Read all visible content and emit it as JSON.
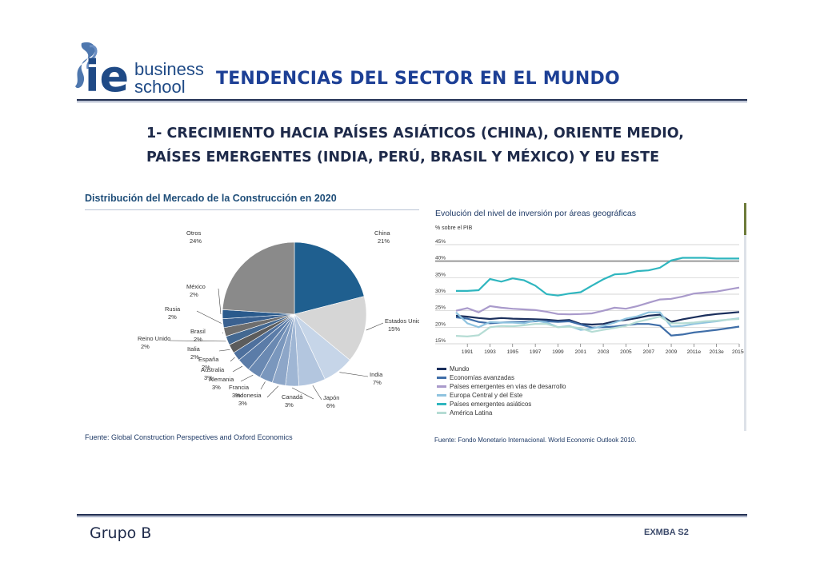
{
  "logo": {
    "mark": "ie",
    "line1": "business",
    "line2": "school"
  },
  "slide_title": "TENDENCIAS DEL SECTOR EN EL MUNDO",
  "heading": {
    "line1": "1- CRECIMIENTO HACIA PAÍSES ASIÁTICOS (CHINA), ORIENTE MEDIO,",
    "line2": "PAÍSES EMERGENTES (INDIA, PERÚ, BRASIL Y MÉXICO)  Y   EU  ESTE"
  },
  "footer": {
    "left": "Grupo B",
    "right": "EXMBA S2"
  },
  "chart_data": [
    {
      "type": "pie",
      "title": "Distribución del Mercado de la Construcción en 2020",
      "source": "Fuente: Global Construction Perspectives and Oxford Economics",
      "slices": [
        {
          "name": "China",
          "value": 21,
          "label": "21%",
          "color": "#1f5f8f"
        },
        {
          "name": "Estados Unidos",
          "value": 15,
          "label": "15%",
          "color": "#d6d6d6"
        },
        {
          "name": "India",
          "value": 7,
          "label": "7%",
          "color": "#c6d5e8"
        },
        {
          "name": "Japón",
          "value": 6,
          "label": "6%",
          "color": "#b3c6df"
        },
        {
          "name": "Canadá",
          "value": 3,
          "label": "3%",
          "color": "#9fb6d4"
        },
        {
          "name": "Indonesia",
          "value": 3,
          "label": "3%",
          "color": "#8da6c8"
        },
        {
          "name": "Francia",
          "value": 3,
          "label": "3%",
          "color": "#7a97bd"
        },
        {
          "name": "Alemania",
          "value": 3,
          "label": "3%",
          "color": "#6a89b2"
        },
        {
          "name": "Australia",
          "value": 3,
          "label": "3%",
          "color": "#5b7ca8"
        },
        {
          "name": "España",
          "value": 2,
          "label": "2%",
          "color": "#4e709d"
        },
        {
          "name": "Italia",
          "value": 2,
          "label": "2%",
          "color": "#5c5c5c"
        },
        {
          "name": "Reino Unido",
          "value": 2,
          "label": "2%",
          "color": "#436891"
        },
        {
          "name": "Brasil",
          "value": 2,
          "label": "2%",
          "color": "#6e6e6e"
        },
        {
          "name": "Rusia",
          "value": 2,
          "label": "2%",
          "color": "#3a6190"
        },
        {
          "name": "México",
          "value": 2,
          "label": "2%",
          "color": "#2a5a8c"
        },
        {
          "name": "Otros",
          "value": 24,
          "label": "24%",
          "color": "#8a8a8a"
        }
      ]
    },
    {
      "type": "line",
      "title": "Evolución del nivel de inversión por áreas geográficas",
      "ylabel": "% sobre el PIB",
      "ylim": [
        15,
        45
      ],
      "y_ticks": [
        "45%",
        "40%",
        "35%",
        "30%",
        "25%",
        "20%",
        "15%"
      ],
      "x_ticks": [
        "1991",
        "1993",
        "1995",
        "1997",
        "1999",
        "2001",
        "2003",
        "2005",
        "2007",
        "2009",
        "2011e",
        "2013e",
        "2015e"
      ],
      "x": [
        1990,
        1991,
        1992,
        1993,
        1994,
        1995,
        1996,
        1997,
        1998,
        1999,
        2000,
        2001,
        2002,
        2003,
        2004,
        2005,
        2006,
        2007,
        2008,
        2009,
        2010,
        2011,
        2012,
        2013,
        2014,
        2015
      ],
      "series": [
        {
          "name": "Mundo",
          "color": "#1b2f5c",
          "values": [
            23.5,
            23.2,
            22.8,
            22.5,
            22.8,
            22.6,
            22.5,
            22.4,
            22.3,
            22.0,
            22.2,
            21.0,
            20.8,
            21.0,
            21.8,
            22.2,
            22.8,
            23.5,
            23.8,
            21.6,
            22.4,
            23.0,
            23.6,
            24.0,
            24.3,
            24.6
          ]
        },
        {
          "name": "Economías avanzadas",
          "color": "#3f6ea8",
          "values": [
            23.0,
            22.6,
            21.6,
            21.2,
            21.4,
            21.6,
            21.6,
            21.8,
            21.8,
            21.6,
            21.8,
            20.8,
            19.9,
            20.0,
            20.2,
            20.6,
            21.0,
            21.0,
            20.5,
            17.5,
            17.8,
            18.4,
            18.8,
            19.2,
            19.7,
            20.2
          ]
        },
        {
          "name": "Países emergentes en vías de desarrollo",
          "color": "#a99acb",
          "values": [
            25.0,
            25.8,
            24.5,
            26.4,
            25.9,
            25.6,
            25.4,
            25.2,
            24.7,
            24.0,
            23.9,
            24.0,
            24.2,
            25.0,
            25.9,
            25.6,
            26.4,
            27.4,
            28.4,
            28.6,
            29.3,
            30.2,
            30.5,
            30.8,
            31.4,
            32.0
          ]
        },
        {
          "name": "Europa Central y del Este",
          "color": "#8fc3df",
          "values": [
            24.5,
            21.2,
            20.0,
            21.6,
            21.4,
            21.4,
            21.2,
            22.0,
            21.4,
            20.0,
            20.4,
            19.2,
            19.6,
            20.4,
            21.4,
            22.6,
            23.3,
            24.5,
            24.5,
            20.2,
            20.4,
            21.0,
            21.4,
            21.8,
            22.3,
            22.7
          ]
        },
        {
          "name": "Países emergentes asiáticos",
          "color": "#2fb6bf",
          "values": [
            31.0,
            31.0,
            31.2,
            34.6,
            33.8,
            34.8,
            34.2,
            32.6,
            30.0,
            29.6,
            30.2,
            30.6,
            32.6,
            34.5,
            36.0,
            36.2,
            37.0,
            37.2,
            38.0,
            40.2,
            41.0,
            41.0,
            41.0,
            40.8,
            40.8,
            40.8
          ]
        },
        {
          "name": "América Latina",
          "color": "#b5dcd4",
          "values": [
            17.4,
            17.2,
            17.6,
            20.0,
            20.4,
            20.3,
            20.6,
            21.0,
            21.0,
            20.0,
            20.2,
            19.7,
            18.6,
            19.2,
            19.8,
            20.4,
            21.6,
            22.4,
            23.2,
            21.2,
            21.2,
            21.4,
            21.8,
            22.0,
            22.3,
            22.5
          ]
        }
      ],
      "source": "Fuente: Fondo Monetario Internacional. World Economic Outlook 2010."
    }
  ],
  "colors": {
    "title": "#1c3f95",
    "text_dark": "#1e2a4a",
    "rule": "#1d2b4f",
    "logo_blue": "#1f4a86"
  }
}
